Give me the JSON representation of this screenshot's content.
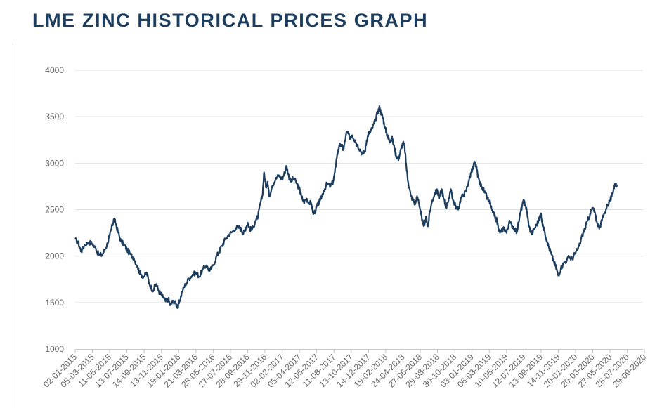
{
  "chart_data": {
    "type": "line",
    "title": "LME ZINC HISTORICAL PRICES GRAPH",
    "xlabel": "",
    "ylabel": "",
    "ylim": [
      1000,
      4000
    ],
    "yticks": [
      1000,
      1500,
      2000,
      2500,
      3000,
      3500,
      4000
    ],
    "grid": true,
    "legend": "none",
    "x_tick_labels": [
      "02-01-2015",
      "05-03-2015",
      "11-05-2015",
      "13-07-2015",
      "14-09-2015",
      "13-11-2015",
      "19-01-2016",
      "21-03-2016",
      "25-05-2016",
      "27-07-2016",
      "28-09-2016",
      "29-11-2016",
      "02-02-2017",
      "05-04-2017",
      "12-06-2017",
      "11-08-2017",
      "13-10-2017",
      "14-12-2017",
      "19-02-2018",
      "24-04-2018",
      "27-06-2018",
      "29-08-2018",
      "30-10-2018",
      "03-01-2019",
      "06-03-2019",
      "10-05-2019",
      "12-07-2019",
      "13-09-2019",
      "14-11-2019",
      "20-01-2020",
      "20-03-2020",
      "27-05-2020",
      "28-07-2020",
      "29-09-2020"
    ],
    "series": [
      {
        "name": "LME Zinc",
        "color": "#1c3d5e",
        "points": [
          [
            0,
            2180
          ],
          [
            0.2,
            2130
          ],
          [
            0.35,
            2050
          ],
          [
            0.55,
            2120
          ],
          [
            0.8,
            2150
          ],
          [
            1,
            2130
          ],
          [
            1.2,
            2080
          ],
          [
            1.35,
            2020
          ],
          [
            1.55,
            2010
          ],
          [
            1.75,
            2080
          ],
          [
            1.9,
            2150
          ],
          [
            2.0,
            2220
          ],
          [
            2.15,
            2330
          ],
          [
            2.25,
            2400
          ],
          [
            2.35,
            2350
          ],
          [
            2.5,
            2250
          ],
          [
            2.65,
            2160
          ],
          [
            2.85,
            2120
          ],
          [
            3.0,
            2070
          ],
          [
            3.2,
            2020
          ],
          [
            3.4,
            1980
          ],
          [
            3.6,
            1890
          ],
          [
            3.8,
            1800
          ],
          [
            4.0,
            1780
          ],
          [
            4.15,
            1820
          ],
          [
            4.3,
            1700
          ],
          [
            4.5,
            1630
          ],
          [
            4.7,
            1700
          ],
          [
            4.85,
            1620
          ],
          [
            5.0,
            1580
          ],
          [
            5.1,
            1560
          ],
          [
            5.25,
            1510
          ],
          [
            5.4,
            1540
          ],
          [
            5.5,
            1470
          ],
          [
            5.7,
            1520
          ],
          [
            5.85,
            1480
          ],
          [
            5.95,
            1450
          ],
          [
            6.05,
            1510
          ],
          [
            6.2,
            1620
          ],
          [
            6.4,
            1700
          ],
          [
            6.6,
            1760
          ],
          [
            6.8,
            1800
          ],
          [
            7.0,
            1820
          ],
          [
            7.2,
            1780
          ],
          [
            7.4,
            1860
          ],
          [
            7.6,
            1900
          ],
          [
            7.8,
            1840
          ],
          [
            8.0,
            1900
          ],
          [
            8.2,
            2000
          ],
          [
            8.35,
            2050
          ],
          [
            8.5,
            2110
          ],
          [
            8.7,
            2180
          ],
          [
            8.9,
            2230
          ],
          [
            9.1,
            2260
          ],
          [
            9.3,
            2300
          ],
          [
            9.5,
            2310
          ],
          [
            9.65,
            2280
          ],
          [
            9.75,
            2240
          ],
          [
            9.9,
            2310
          ],
          [
            10.0,
            2360
          ],
          [
            10.1,
            2300
          ],
          [
            10.25,
            2280
          ],
          [
            10.45,
            2380
          ],
          [
            10.6,
            2430
          ],
          [
            10.75,
            2580
          ],
          [
            10.85,
            2650
          ],
          [
            10.95,
            2900
          ],
          [
            11.05,
            2740
          ],
          [
            11.15,
            2800
          ],
          [
            11.25,
            2640
          ],
          [
            11.4,
            2750
          ],
          [
            11.6,
            2820
          ],
          [
            11.8,
            2870
          ],
          [
            12.0,
            2830
          ],
          [
            12.15,
            2900
          ],
          [
            12.25,
            2970
          ],
          [
            12.35,
            2880
          ],
          [
            12.5,
            2800
          ],
          [
            12.65,
            2840
          ],
          [
            12.85,
            2780
          ],
          [
            13.0,
            2720
          ],
          [
            13.1,
            2650
          ],
          [
            13.25,
            2580
          ],
          [
            13.4,
            2620
          ],
          [
            13.55,
            2580
          ],
          [
            13.7,
            2560
          ],
          [
            13.8,
            2450
          ],
          [
            13.95,
            2500
          ],
          [
            14.05,
            2550
          ],
          [
            14.2,
            2600
          ],
          [
            14.4,
            2700
          ],
          [
            14.6,
            2780
          ],
          [
            14.8,
            2750
          ],
          [
            14.95,
            2800
          ],
          [
            15.05,
            2900
          ],
          [
            15.15,
            3050
          ],
          [
            15.25,
            3150
          ],
          [
            15.4,
            3200
          ],
          [
            15.55,
            3150
          ],
          [
            15.65,
            3250
          ],
          [
            15.75,
            3340
          ],
          [
            15.9,
            3280
          ],
          [
            16.05,
            3300
          ],
          [
            16.2,
            3250
          ],
          [
            16.35,
            3200
          ],
          [
            16.5,
            3150
          ],
          [
            16.65,
            3100
          ],
          [
            16.8,
            3130
          ],
          [
            16.9,
            3250
          ],
          [
            17.0,
            3320
          ],
          [
            17.1,
            3330
          ],
          [
            17.25,
            3390
          ],
          [
            17.4,
            3460
          ],
          [
            17.55,
            3560
          ],
          [
            17.65,
            3600
          ],
          [
            17.75,
            3530
          ],
          [
            17.85,
            3480
          ],
          [
            17.95,
            3380
          ],
          [
            18.05,
            3330
          ],
          [
            18.15,
            3260
          ],
          [
            18.25,
            3240
          ],
          [
            18.35,
            3280
          ],
          [
            18.45,
            3200
          ],
          [
            18.55,
            3120
          ],
          [
            18.65,
            3060
          ],
          [
            18.75,
            3050
          ],
          [
            18.9,
            3160
          ],
          [
            19.0,
            3220
          ],
          [
            19.1,
            3170
          ],
          [
            19.2,
            2950
          ],
          [
            19.3,
            2800
          ],
          [
            19.45,
            2650
          ],
          [
            19.6,
            2600
          ],
          [
            19.7,
            2560
          ],
          [
            19.8,
            2630
          ],
          [
            19.9,
            2600
          ],
          [
            20.0,
            2500
          ],
          [
            20.1,
            2380
          ],
          [
            20.25,
            2330
          ],
          [
            20.35,
            2420
          ],
          [
            20.45,
            2320
          ],
          [
            20.55,
            2470
          ],
          [
            20.7,
            2600
          ],
          [
            20.85,
            2680
          ],
          [
            21.0,
            2700
          ],
          [
            21.1,
            2620
          ],
          [
            21.25,
            2720
          ],
          [
            21.35,
            2620
          ],
          [
            21.5,
            2520
          ],
          [
            21.65,
            2620
          ],
          [
            21.8,
            2710
          ],
          [
            21.9,
            2600
          ],
          [
            22.05,
            2540
          ],
          [
            22.2,
            2500
          ],
          [
            22.35,
            2620
          ],
          [
            22.5,
            2660
          ],
          [
            22.65,
            2700
          ],
          [
            22.8,
            2800
          ],
          [
            22.95,
            2900
          ],
          [
            23.05,
            2940
          ],
          [
            23.15,
            3010
          ],
          [
            23.25,
            2950
          ],
          [
            23.35,
            2860
          ],
          [
            23.45,
            2780
          ],
          [
            23.6,
            2740
          ],
          [
            23.75,
            2680
          ],
          [
            23.9,
            2620
          ],
          [
            24.05,
            2560
          ],
          [
            24.15,
            2490
          ],
          [
            24.3,
            2430
          ],
          [
            24.45,
            2380
          ],
          [
            24.55,
            2270
          ],
          [
            24.7,
            2260
          ],
          [
            24.85,
            2310
          ],
          [
            25.0,
            2250
          ],
          [
            25.15,
            2360
          ],
          [
            25.3,
            2340
          ],
          [
            25.45,
            2300
          ],
          [
            25.6,
            2260
          ],
          [
            25.75,
            2410
          ],
          [
            25.9,
            2540
          ],
          [
            26.0,
            2590
          ],
          [
            26.1,
            2550
          ],
          [
            26.2,
            2460
          ],
          [
            26.3,
            2320
          ],
          [
            26.45,
            2240
          ],
          [
            26.6,
            2290
          ],
          [
            26.75,
            2340
          ],
          [
            26.9,
            2400
          ],
          [
            27.0,
            2460
          ],
          [
            27.1,
            2320
          ],
          [
            27.2,
            2280
          ],
          [
            27.35,
            2160
          ],
          [
            27.45,
            2100
          ],
          [
            27.6,
            2020
          ],
          [
            27.75,
            1940
          ],
          [
            27.9,
            1860
          ],
          [
            28.0,
            1790
          ],
          [
            28.15,
            1870
          ],
          [
            28.3,
            1920
          ],
          [
            28.5,
            1960
          ],
          [
            28.65,
            1990
          ],
          [
            28.8,
            1970
          ],
          [
            28.95,
            2020
          ],
          [
            29.1,
            2060
          ],
          [
            29.25,
            2130
          ],
          [
            29.4,
            2230
          ],
          [
            29.55,
            2300
          ],
          [
            29.7,
            2380
          ],
          [
            29.85,
            2460
          ],
          [
            30.0,
            2520
          ],
          [
            30.1,
            2470
          ],
          [
            30.25,
            2360
          ],
          [
            30.4,
            2310
          ],
          [
            30.55,
            2400
          ],
          [
            30.7,
            2470
          ],
          [
            30.85,
            2550
          ],
          [
            31.0,
            2600
          ],
          [
            31.1,
            2640
          ],
          [
            31.2,
            2720
          ],
          [
            31.3,
            2780
          ],
          [
            31.4,
            2770
          ]
        ]
      }
    ]
  }
}
